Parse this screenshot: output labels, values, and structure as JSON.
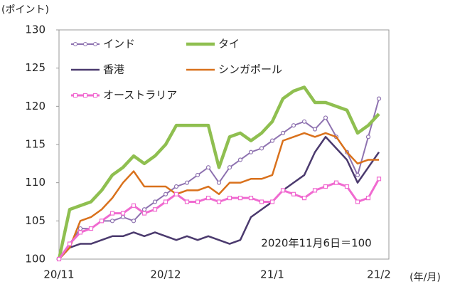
{
  "chart_data": {
    "type": "line",
    "y_label": "(ポイント)",
    "x_label": "(年/月)",
    "annotation": "2020年11月6日＝100",
    "categories": [
      "20/11",
      null,
      null,
      null,
      null,
      null,
      null,
      null,
      null,
      null,
      "20/12",
      null,
      null,
      null,
      null,
      null,
      null,
      null,
      null,
      null,
      "21/1",
      null,
      null,
      null,
      null,
      null,
      null,
      null,
      null,
      null,
      "21/2"
    ],
    "ylim": [
      100,
      130
    ],
    "yticks": [
      100,
      105,
      110,
      115,
      120,
      125,
      130
    ],
    "legend": "top-left",
    "series": [
      {
        "name": "インド",
        "color": "#8e72b0",
        "marker": "circle",
        "values": [
          100,
          102,
          104,
          104,
          105,
          105,
          105.5,
          105,
          106.5,
          107.5,
          108.5,
          109.5,
          110,
          111,
          112,
          110,
          112,
          113,
          114,
          114.5,
          115.5,
          116.5,
          117.5,
          118,
          117,
          118.5,
          116,
          114,
          111,
          116,
          121
        ]
      },
      {
        "name": "タイ",
        "color": "#8fbf50",
        "values": [
          100,
          106.5,
          107,
          107.5,
          109,
          111,
          112,
          113.5,
          112.5,
          113.5,
          115,
          117.5,
          117.5,
          117.5,
          117.5,
          112,
          116,
          116.5,
          115.5,
          116.5,
          118,
          121,
          122,
          122.5,
          120.5,
          120.5,
          120,
          119.5,
          116.5,
          117.5,
          119
        ]
      },
      {
        "name": "香港",
        "color": "#4b3a6e",
        "values": [
          100,
          101.5,
          102,
          102,
          102.5,
          103,
          103,
          103.5,
          103,
          103.5,
          103,
          102.5,
          103,
          102.5,
          103,
          102.5,
          102,
          102.5,
          105.5,
          106.5,
          107.5,
          109,
          110,
          111,
          114,
          116,
          114.5,
          113,
          110,
          112,
          114
        ]
      },
      {
        "name": "シンガポール",
        "color": "#d9711c",
        "values": [
          100,
          101.5,
          105,
          105.5,
          106.5,
          108,
          110,
          111.5,
          109.5,
          109.5,
          109.5,
          108.5,
          109,
          109,
          109.5,
          108.5,
          110,
          110,
          110.5,
          110.5,
          111,
          115.5,
          116,
          116.5,
          116,
          116.5,
          116,
          114,
          112.5,
          113,
          113
        ]
      },
      {
        "name": "オーストラリア",
        "color": "#f06ad0",
        "marker": "square",
        "values": [
          100,
          102,
          103.5,
          104,
          105,
          106,
          106,
          107,
          106,
          106.5,
          107.5,
          108.5,
          107.5,
          107.5,
          108,
          107.5,
          108,
          108,
          108,
          107.5,
          107.5,
          109,
          108.5,
          108,
          109,
          109.5,
          110,
          109.5,
          107.5,
          108,
          110.5
        ]
      }
    ]
  }
}
